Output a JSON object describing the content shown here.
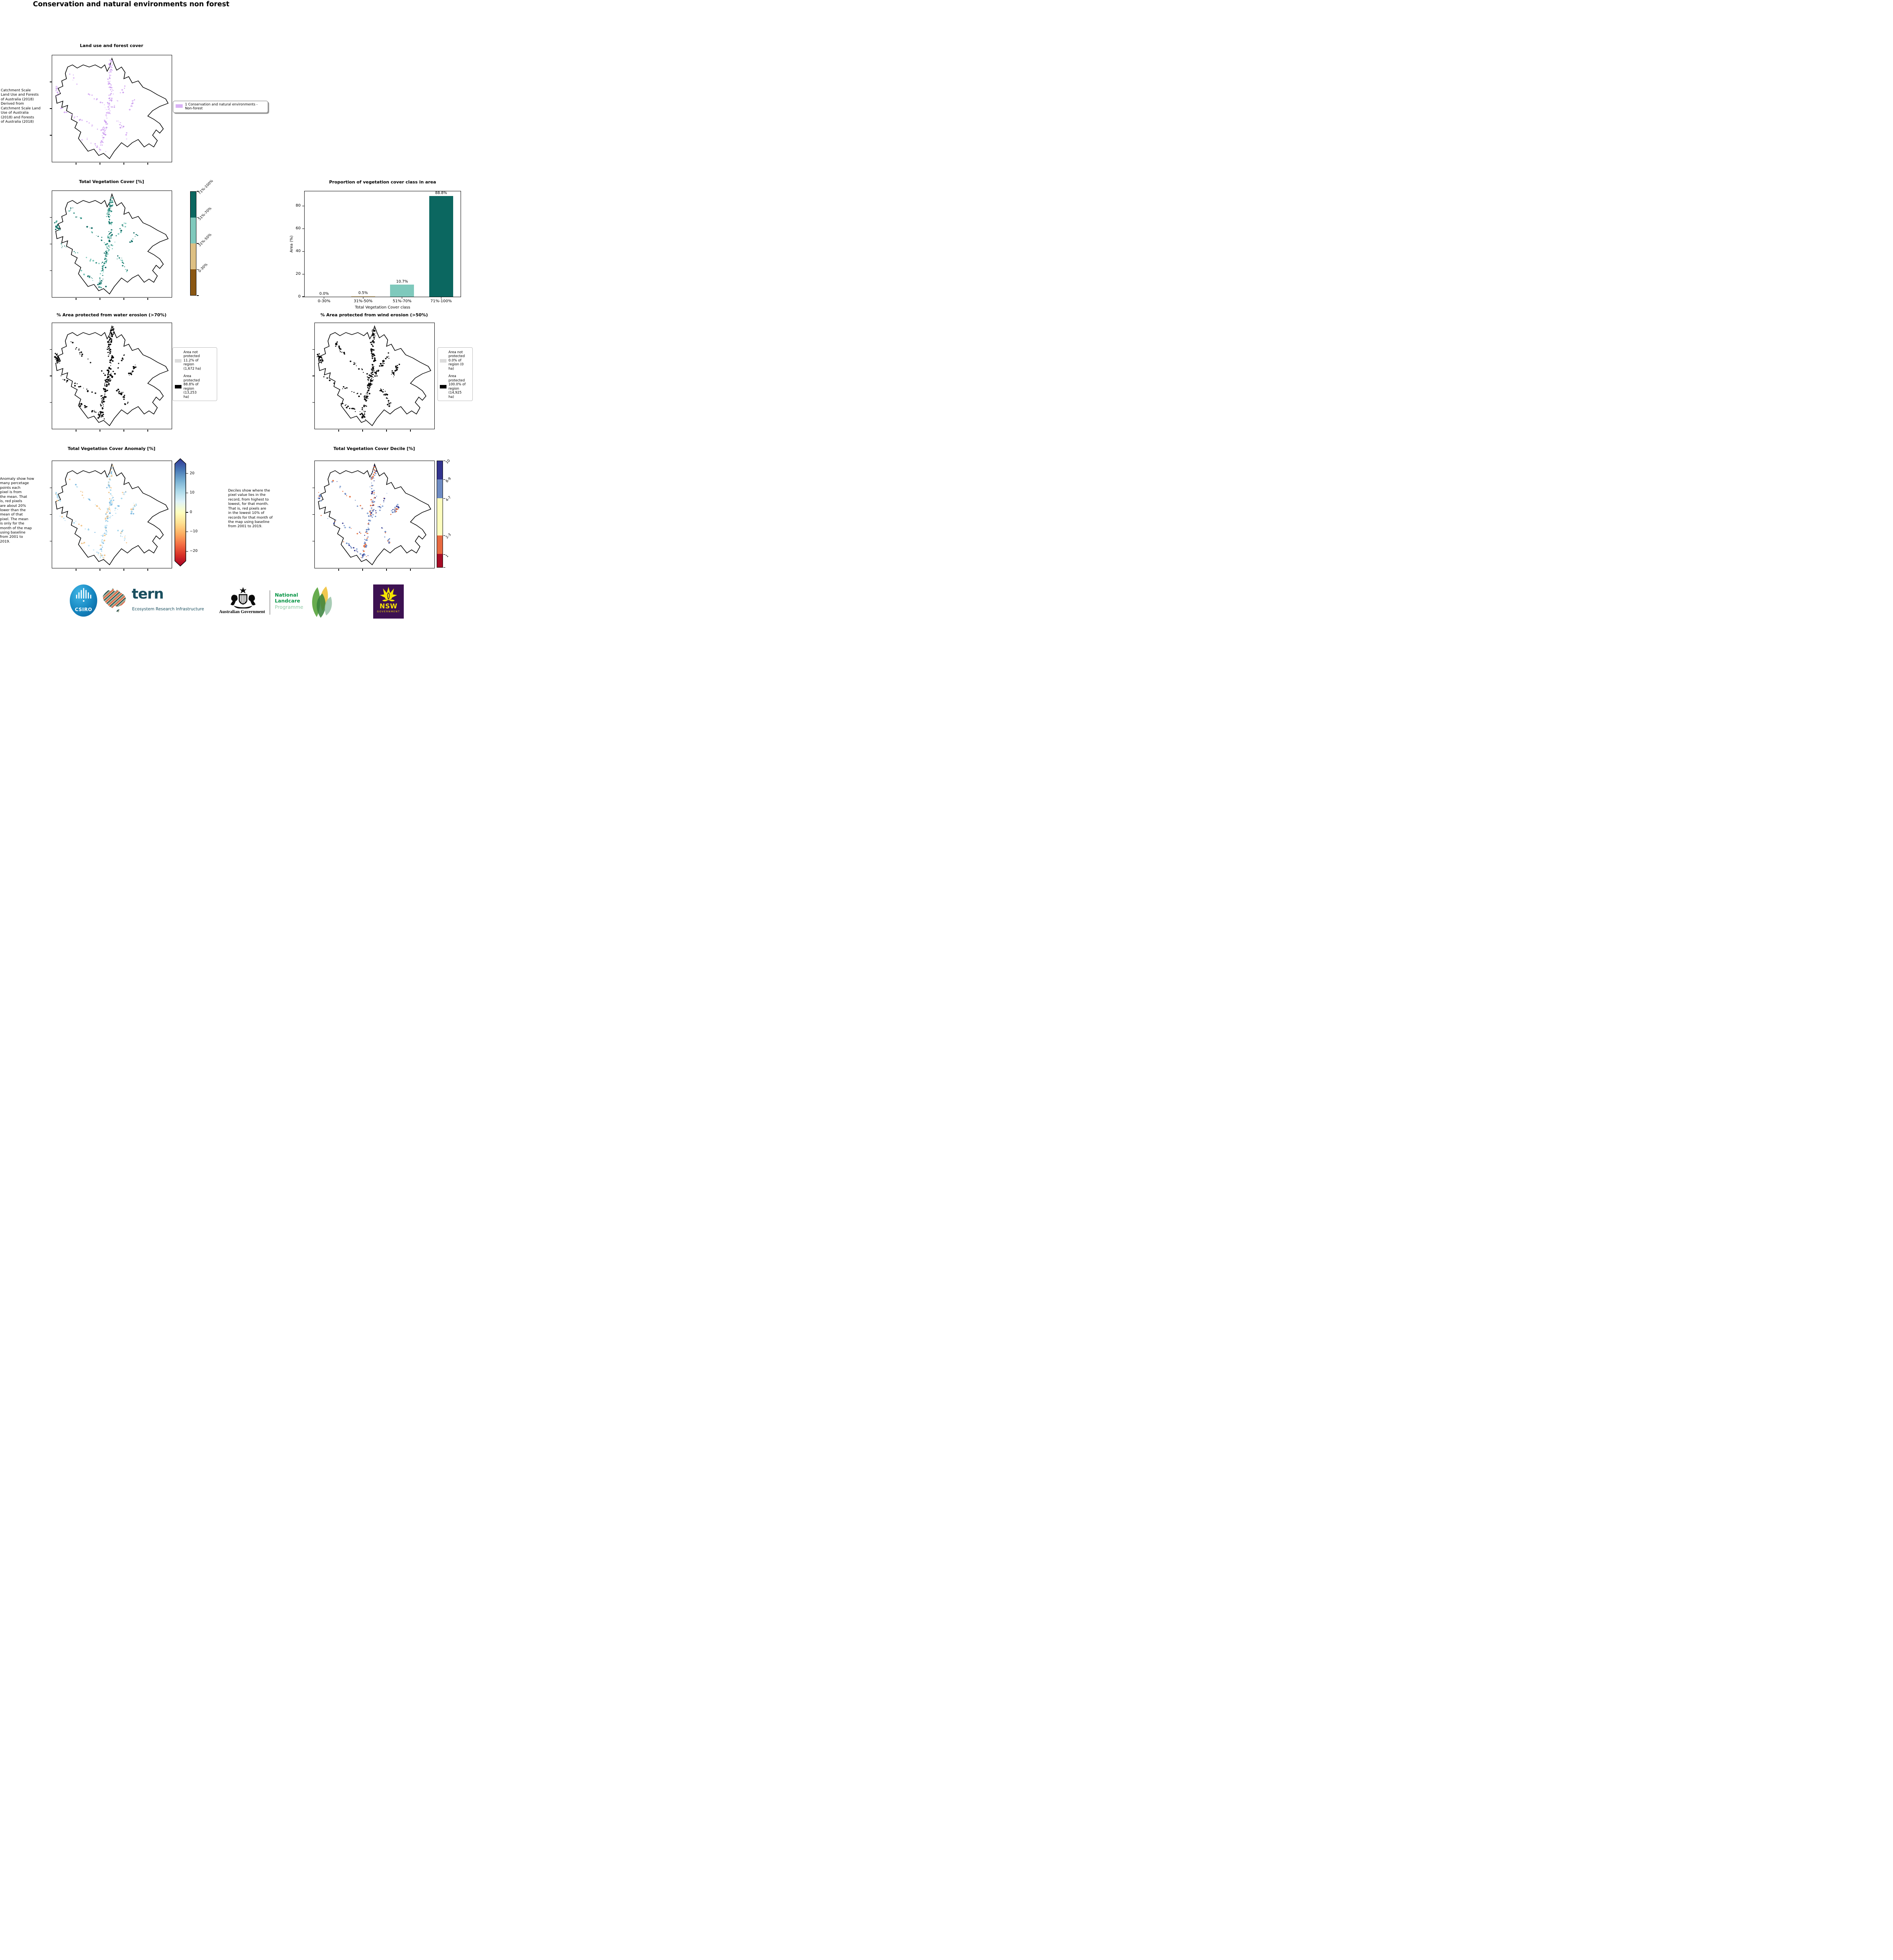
{
  "page": {
    "title": "Conservation and natural environments non forest"
  },
  "panels": {
    "landuse": {
      "title": "Land use and forest cover",
      "note": " Catchment Scale\nLand Use and Forests\nof Australia (2018)\nDerived from\nCatchment Scale Land\nUse of Australia\n(2018) and Forests\nof Australia (2018)",
      "legend_label": "1 Conservation and natural environments - Non-forest",
      "legend_color": "#d9b2f5",
      "speckles": {
        "colors": [
          "#d8b0f4",
          "#cda2ef",
          "#e4c8f8"
        ],
        "count": 230,
        "seed": 11
      }
    },
    "tvc": {
      "title": "Total Vegetation Cover [%]",
      "colorbar": {
        "labels": [
          "71%-100%",
          "51%-70%",
          "31%-50%",
          "0-30%"
        ],
        "colors": [
          "#0b6760",
          "#7fc9bc",
          "#ddc083",
          "#8a5713"
        ]
      },
      "speckles": {
        "colors": [
          "#0b6760",
          "#2f8f82",
          "#7fc9bc"
        ],
        "count": 250,
        "seed": 23
      }
    },
    "water": {
      "title": "% Area protected from water erosion (>70%)",
      "legend": [
        {
          "color": "#dcdcdc",
          "label": "Area not\nprotected\n11.2% of\nregion\n(1,672 ha)"
        },
        {
          "color": "#000000",
          "label": "Area\nprotected\n88.8% of\nregion\n(13,253\nha)"
        }
      ],
      "speckles": {
        "colors": [
          "#000000",
          "#141414"
        ],
        "count": 320,
        "seed": 37
      }
    },
    "wind": {
      "title": "% Area protected from wind erosion (>50%)",
      "legend": [
        {
          "color": "#dcdcdc",
          "label": "Area not\nprotected\n0.0% of\nregion (0\nha)"
        },
        {
          "color": "#000000",
          "label": "Area\nprotected\n100.0% of\nregion\n(14,925\nha)"
        }
      ],
      "speckles": {
        "colors": [
          "#000000",
          "#141414"
        ],
        "count": 320,
        "seed": 53
      }
    },
    "anomaly": {
      "title": "Total Vegetation Cover Anomaly [%]",
      "note": "Anomaly show how\nmany percetage\npoints each\npixel is from\nthe mean. That\nis, red pixels\nare about 20%\nlower than the\nmean of that\npixel. The mean\nis only for the\nmonth of the map\nusing baseline\nfrom 2001 to\n2019.",
      "colorbar": {
        "ticks": [
          "20",
          "10",
          "0",
          "−10",
          "−20"
        ],
        "gradient": [
          "#313695",
          "#4575b4",
          "#74add1",
          "#abd9e9",
          "#e0f3f8",
          "#ffffbf",
          "#fee090",
          "#fdae61",
          "#f46d43",
          "#d73027",
          "#a50026"
        ]
      },
      "speckles": {
        "colors": [
          "#a9d9ee",
          "#cde9f5",
          "#83bce2",
          "#f2c78e"
        ],
        "count": 230,
        "seed": 67
      }
    },
    "decile": {
      "title": "Total Vegetation Cover Decile [%]",
      "note": "Deciles show where the\npixel value lies in the\nrecord, from highest to\nlowest, for that month.\nThat is, red pixels are\nin the lowest 10% of\nrecords for that month of\nthe map using baseline\nfrom 2001 to 2019.",
      "colorbar": {
        "labels": [
          "10",
          "8-9",
          "4-7",
          "2-3",
          "1"
        ],
        "colors": [
          "#33348e",
          "#6e8bc3",
          "#fdfdbe",
          "#e76a41",
          "#a60c26"
        ]
      },
      "speckles": {
        "colors": [
          "#383d92",
          "#6e8bc3",
          "#8ea9d6",
          "#e8784a"
        ],
        "count": 230,
        "seed": 83
      }
    }
  },
  "chart_data": {
    "type": "bar",
    "title": "Proportion of vegetation cover class in area",
    "categories": [
      "0-30%",
      "31%-50%",
      "51%-70%",
      "71%-100%"
    ],
    "values": [
      0.0,
      0.5,
      10.7,
      88.8
    ],
    "value_labels": [
      "0.0%",
      "0.5%",
      "10.7%",
      "88.8%"
    ],
    "bar_colors": [
      "#8a5713",
      "#d9b468",
      "#7fc9bc",
      "#0b6760"
    ],
    "xlabel": "Total Vegetation Cover class",
    "ylabel": "Area (%)",
    "ylim": [
      0,
      93
    ],
    "yticks": [
      0,
      20,
      40,
      60,
      80
    ],
    "grid": false,
    "legend": "none"
  },
  "footer": {
    "csiro": "CSIRO",
    "tern": "tern",
    "tern_sub": "Ecosystem Research Infrastructure",
    "aus_gov": "Australian Government",
    "landcare": [
      "National",
      "Landcare",
      "Programme"
    ],
    "nsw": "NSW",
    "nsw_sub": "GOVERNMENT"
  }
}
